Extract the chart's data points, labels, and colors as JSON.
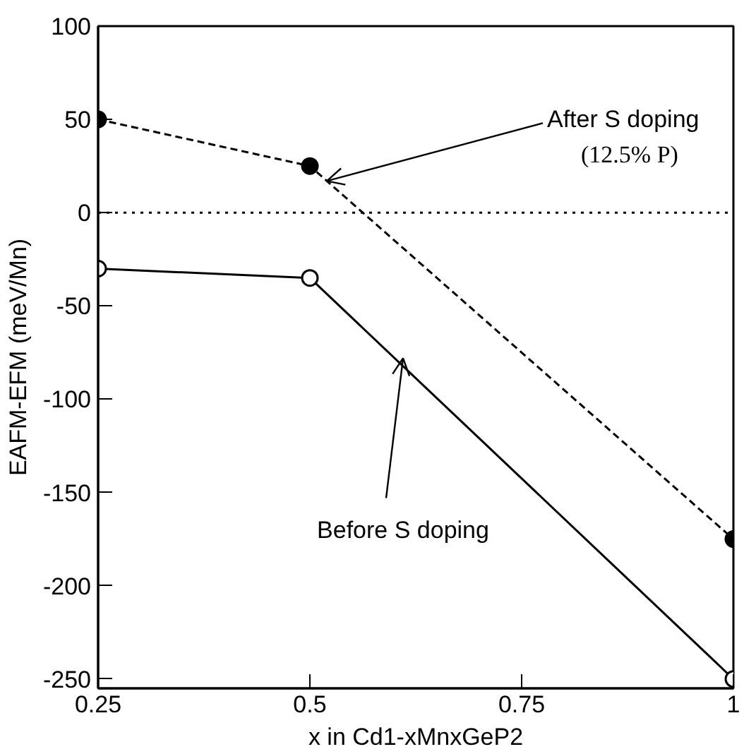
{
  "chart_data": {
    "type": "line",
    "xlabel": "x in Cd1-xMnxGeP2",
    "ylabel": "EAFM-EFM (meV/Mn)",
    "x": [
      0.25,
      0.5,
      1
    ],
    "series": [
      {
        "color": "#000000",
        "values": [
          50,
          25,
          -175
        ],
        "line_style": "dashed",
        "marker": "circle"
      },
      {
        "color": "#000000",
        "values": [
          -30,
          -35,
          -250
        ],
        "line_style": "solid",
        "marker": "circle"
      }
    ],
    "xlim": [
      0.25,
      1
    ],
    "ylim": [
      -255,
      100
    ],
    "xticks": [
      0.25,
      0.5,
      0.75,
      1
    ],
    "yticks": [
      -250,
      -200,
      -150,
      -100,
      -50,
      0,
      50,
      100
    ],
    "ref_lines": [
      {
        "axis": "y",
        "value": 0,
        "line_style": "dotted",
        "color": "#000000"
      }
    ],
    "annotations": [
      {
        "text": "After S doping",
        "x": 0.52,
        "y": 17
      },
      "(12.5% P)",
      {
        "text": "Before S doping",
        "x": 0.61,
        "y": -78
      }
    ],
    "grid": false
  }
}
